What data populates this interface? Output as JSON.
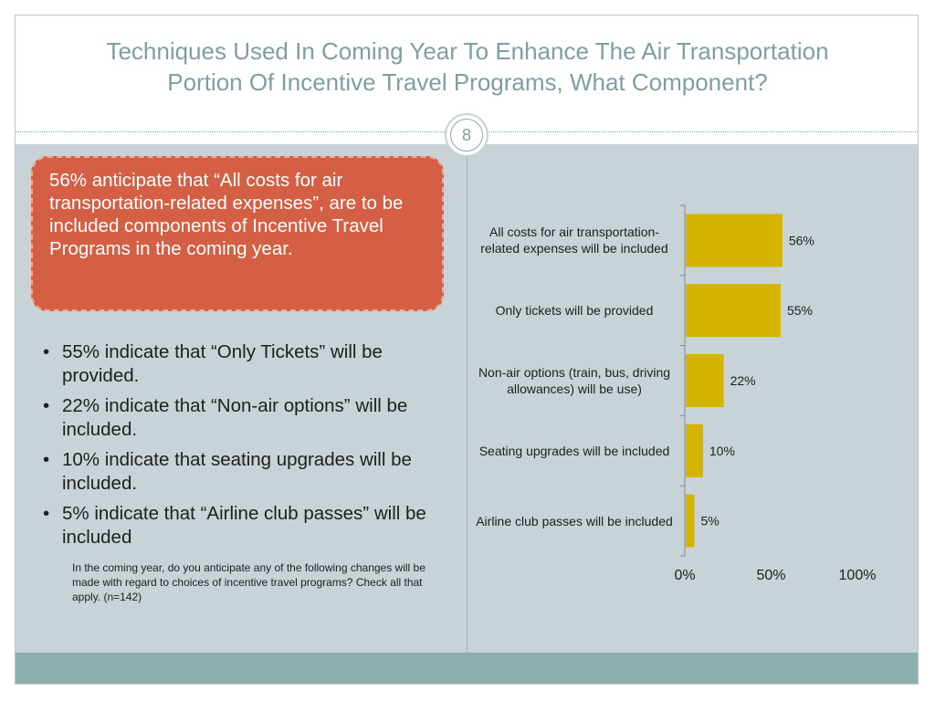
{
  "slide": {
    "title_line1": "Techniques Used In Coming Year To Enhance The Air Transportation",
    "title_line2": "Portion Of Incentive Travel Programs, What Component?",
    "page_number": "8"
  },
  "callout": "56% anticipate that “All costs for air transportation-related expenses”, are to be included components of Incentive Travel Programs in the coming year.",
  "bullets": [
    "55% indicate that “Only Tickets” will be provided.",
    "22% indicate that “Non-air options” will be included.",
    "10% indicate that seating upgrades will be included.",
    "5% indicate that “Airline club passes” will be included"
  ],
  "footnote": "In the coming year, do you anticipate any of the following changes will be made with regard to choices of incentive travel programs? Check all that apply. (n=142)",
  "chart_data": {
    "type": "bar",
    "orientation": "horizontal",
    "categories": [
      "All costs for air transportation-related expenses will be included",
      "Only tickets will be provided",
      "Non-air options (train, bus, driving allowances) will be use)",
      "Seating upgrades will be included",
      "Airline club passes will be included"
    ],
    "values": [
      56,
      55,
      22,
      10,
      5
    ],
    "data_labels": [
      "56%",
      "55%",
      "22%",
      "10%",
      "5%"
    ],
    "xlim": [
      0,
      100
    ],
    "x_ticks": [
      "0%",
      "50%",
      "100%"
    ],
    "bar_color": "#d4b400",
    "grid": false
  }
}
